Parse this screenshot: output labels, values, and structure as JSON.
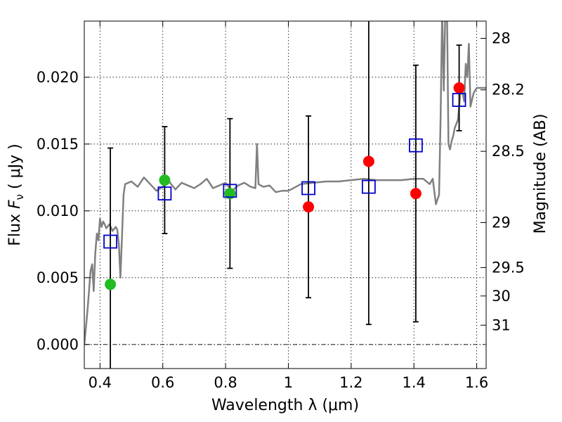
{
  "chart_data": {
    "type": "scatter",
    "xlabel": "Wavelength  λ (μm)",
    "ylabel": "Flux  F_ν  ( μJy )",
    "ylabel_parts": {
      "pre": "Flux  ",
      "sym": "F",
      "sub": "ν",
      "post": "  ( μJy )"
    },
    "y2label": "Magnitude (AB)",
    "xlim": [
      0.35,
      1.63
    ],
    "ylim": [
      -0.0018,
      0.0242
    ],
    "grid": true,
    "x_ticks": [
      0.4,
      0.6,
      0.8,
      1.0,
      1.2,
      1.4,
      1.6
    ],
    "x_tick_labels": [
      "0.4",
      "0.6",
      "0.8",
      "1",
      "1.2",
      "1.4",
      "1.6"
    ],
    "y_ticks": [
      0.0,
      0.005,
      0.01,
      0.015,
      0.02
    ],
    "y_tick_labels": [
      "0.000",
      "0.005",
      "0.010",
      "0.015",
      "0.020"
    ],
    "mag_ticks": [
      28,
      28.2,
      28.5,
      29,
      29.5,
      30,
      31
    ],
    "mag_tick_labels": [
      "28",
      "28.2",
      "28.5",
      "29",
      "29.5",
      "30",
      "31"
    ],
    "zero_point_line": 0.0,
    "series": [
      {
        "kind": "observed-photometry-green",
        "color": "#22bb22",
        "points": [
          {
            "x": 0.433,
            "y": 0.0045,
            "err": 0.0102
          },
          {
            "x": 0.606,
            "y": 0.0123,
            "err": 0.004
          },
          {
            "x": 0.814,
            "y": 0.0113,
            "err": 0.0056
          }
        ]
      },
      {
        "kind": "observed-photometry-red",
        "color": "#ff0000",
        "points": [
          {
            "x": 1.064,
            "y": 0.0103,
            "err": 0.0068
          },
          {
            "x": 1.256,
            "y": 0.0137,
            "err": 0.0122
          },
          {
            "x": 1.406,
            "y": 0.0113,
            "err": 0.0096
          },
          {
            "x": 1.544,
            "y": 0.0192,
            "err": 0.0032
          }
        ]
      },
      {
        "kind": "model-photometry",
        "color": "#0000cc",
        "points": [
          {
            "x": 0.433,
            "y": 0.0077
          },
          {
            "x": 0.606,
            "y": 0.0113
          },
          {
            "x": 0.814,
            "y": 0.0115
          },
          {
            "x": 1.064,
            "y": 0.0117
          },
          {
            "x": 1.256,
            "y": 0.0118
          },
          {
            "x": 1.406,
            "y": 0.0149
          },
          {
            "x": 1.544,
            "y": 0.0183
          }
        ]
      }
    ],
    "model_spectrum": {
      "color": "#808080",
      "x": [
        0.35,
        0.36,
        0.37,
        0.375,
        0.38,
        0.385,
        0.39,
        0.395,
        0.4,
        0.405,
        0.41,
        0.415,
        0.42,
        0.43,
        0.44,
        0.45,
        0.455,
        0.46,
        0.465,
        0.47,
        0.475,
        0.48,
        0.5,
        0.52,
        0.54,
        0.56,
        0.58,
        0.6,
        0.62,
        0.64,
        0.66,
        0.68,
        0.7,
        0.72,
        0.74,
        0.76,
        0.78,
        0.8,
        0.82,
        0.84,
        0.86,
        0.88,
        0.895,
        0.9,
        0.905,
        0.92,
        0.94,
        0.96,
        0.98,
        1.0,
        1.04,
        1.08,
        1.12,
        1.16,
        1.2,
        1.24,
        1.28,
        1.32,
        1.36,
        1.4,
        1.43,
        1.45,
        1.46,
        1.47,
        1.48,
        1.485,
        1.49,
        1.495,
        1.5,
        1.505,
        1.51,
        1.515,
        1.52,
        1.525,
        1.53,
        1.535,
        1.54,
        1.545,
        1.55,
        1.56,
        1.565,
        1.57,
        1.575,
        1.58,
        1.59,
        1.6,
        1.61,
        1.62,
        1.63
      ],
      "y": [
        0.0,
        0.0025,
        0.0055,
        0.006,
        0.004,
        0.0068,
        0.0083,
        0.0078,
        0.0094,
        0.0088,
        0.0092,
        0.009,
        0.0087,
        0.009,
        0.0085,
        0.0088,
        0.0086,
        0.0075,
        0.005,
        0.008,
        0.0112,
        0.012,
        0.0122,
        0.0118,
        0.0125,
        0.012,
        0.0115,
        0.0118,
        0.0122,
        0.0116,
        0.0121,
        0.0119,
        0.0117,
        0.012,
        0.0124,
        0.0117,
        0.0119,
        0.0121,
        0.0115,
        0.0119,
        0.0121,
        0.0118,
        0.0117,
        0.015,
        0.012,
        0.0118,
        0.0119,
        0.0114,
        0.0115,
        0.0115,
        0.012,
        0.0121,
        0.0122,
        0.0122,
        0.0123,
        0.0124,
        0.0123,
        0.0123,
        0.0123,
        0.0124,
        0.0124,
        0.012,
        0.0124,
        0.0105,
        0.0112,
        0.017,
        0.025,
        0.019,
        0.025,
        0.026,
        0.015,
        0.0146,
        0.0152,
        0.0156,
        0.0162,
        0.0165,
        0.0168,
        0.018,
        0.0195,
        0.0182,
        0.021,
        0.02,
        0.0225,
        0.0178,
        0.0188,
        0.0192,
        0.0192,
        0.0192,
        0.0192
      ]
    }
  }
}
